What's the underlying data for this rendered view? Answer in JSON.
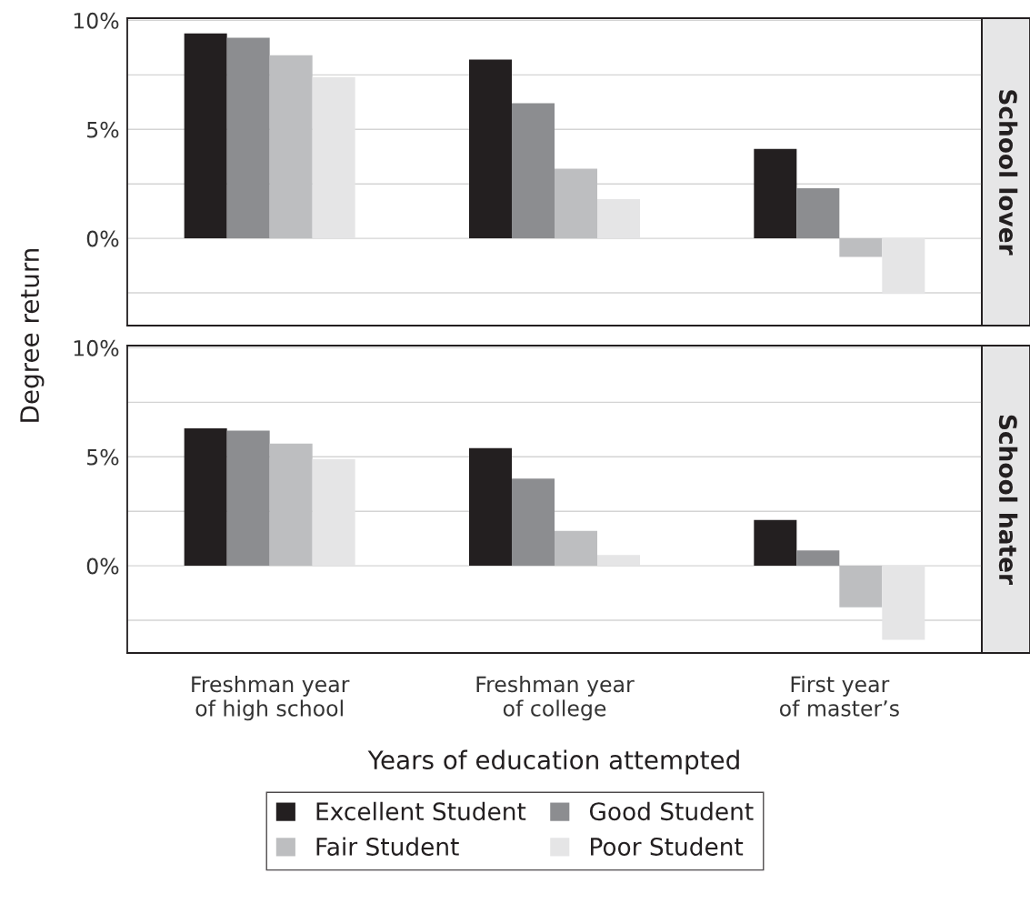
{
  "chart_data": [
    {
      "type": "bar",
      "annotations": [
        "School lover"
      ],
      "categories": [
        null,
        null,
        null
      ],
      "series": [
        {
          "color": "#231f20",
          "values": [
            9.4,
            8.2,
            4.1
          ]
        },
        {
          "color": "#8c8d90",
          "values": [
            9.2,
            6.2,
            2.3
          ]
        },
        {
          "color": "#bdbec0",
          "values": [
            8.4,
            3.2,
            -0.85
          ]
        },
        {
          "color": "#e5e5e6",
          "values": [
            7.4,
            1.8,
            -2.55
          ]
        }
      ],
      "ylim": [
        -4.0,
        10.1
      ],
      "yticks": [
        {
          "value": -2.5,
          "label": null
        },
        {
          "value": 0,
          "label": "0%"
        },
        {
          "value": 2.5,
          "label": null
        },
        {
          "value": 5,
          "label": "5%"
        },
        {
          "value": 7.5,
          "label": null
        },
        {
          "value": 10,
          "label": "10%"
        }
      ],
      "grid": "y",
      "tick_labels": "y",
      "legend": false
    },
    {
      "type": "bar",
      "annotations": [
        "School hater"
      ],
      "ylabel": "Degree return",
      "xlabel": "Years of education attempted",
      "categories": [
        "Freshman year\nof high school",
        "Freshman year\nof college",
        "First year\nof master’s"
      ],
      "series": [
        {
          "name": "Excellent Student",
          "color": "#231f20",
          "values": [
            6.3,
            5.4,
            2.1
          ]
        },
        {
          "name": "Good Student",
          "color": "#8c8d90",
          "values": [
            6.2,
            4.0,
            0.7
          ]
        },
        {
          "name": "Fair Student",
          "color": "#bdbec0",
          "values": [
            5.6,
            1.6,
            -1.9
          ]
        },
        {
          "name": "Poor Student",
          "color": "#e5e5e6",
          "values": [
            4.9,
            0.5,
            -3.4
          ]
        }
      ],
      "ylim": [
        -4.0,
        10.1
      ],
      "yticks": [
        {
          "value": -2.5,
          "label": null
        },
        {
          "value": 0,
          "label": "0%"
        },
        {
          "value": 2.5,
          "label": null
        },
        {
          "value": 5,
          "label": "5%"
        },
        {
          "value": 7.5,
          "label": null
        },
        {
          "value": 10,
          "label": "10%"
        }
      ],
      "grid": "y",
      "legend": "bottom"
    }
  ]
}
